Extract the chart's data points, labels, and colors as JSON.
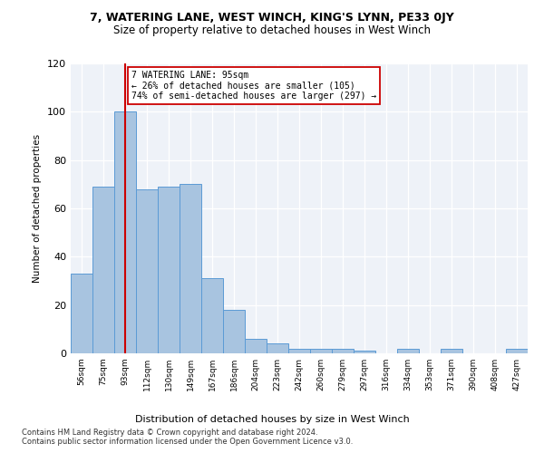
{
  "title_line1": "7, WATERING LANE, WEST WINCH, KING'S LYNN, PE33 0JY",
  "title_line2": "Size of property relative to detached houses in West Winch",
  "xlabel": "Distribution of detached houses by size in West Winch",
  "ylabel": "Number of detached properties",
  "categories": [
    "56sqm",
    "75sqm",
    "93sqm",
    "112sqm",
    "130sqm",
    "149sqm",
    "167sqm",
    "186sqm",
    "204sqm",
    "223sqm",
    "242sqm",
    "260sqm",
    "279sqm",
    "297sqm",
    "316sqm",
    "334sqm",
    "353sqm",
    "371sqm",
    "390sqm",
    "408sqm",
    "427sqm"
  ],
  "values": [
    33,
    69,
    100,
    68,
    69,
    70,
    31,
    18,
    6,
    4,
    2,
    2,
    2,
    1,
    0,
    2,
    0,
    2,
    0,
    0,
    2
  ],
  "bar_color": "#a8c4e0",
  "bar_edge_color": "#5b9bd5",
  "vline_x": 2,
  "vline_color": "#cc0000",
  "ylim": [
    0,
    120
  ],
  "yticks": [
    0,
    20,
    40,
    60,
    80,
    100,
    120
  ],
  "annotation_text": "7 WATERING LANE: 95sqm\n← 26% of detached houses are smaller (105)\n74% of semi-detached houses are larger (297) →",
  "annotation_box_color": "#ffffff",
  "annotation_box_edge_color": "#cc0000",
  "footer_text": "Contains HM Land Registry data © Crown copyright and database right 2024.\nContains public sector information licensed under the Open Government Licence v3.0.",
  "background_color": "#eef2f8"
}
